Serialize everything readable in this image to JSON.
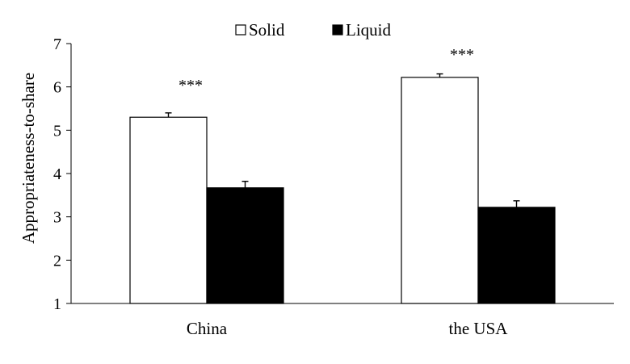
{
  "chart_data": {
    "type": "bar",
    "categories": [
      "China",
      "the USA"
    ],
    "series": [
      {
        "name": "Solid",
        "values": [
          5.3,
          6.22
        ],
        "errors": [
          0.1,
          0.08
        ],
        "color": "#ffffff",
        "stroke": "#000000"
      },
      {
        "name": "Liquid",
        "values": [
          3.67,
          3.22
        ],
        "errors": [
          0.15,
          0.15
        ],
        "color": "#000000",
        "stroke": "#000000"
      }
    ],
    "title": "",
    "xlabel": "",
    "ylabel": "Appropriateness-to-share",
    "ylim": [
      1,
      7
    ],
    "yticks": [
      "1",
      "2",
      "3",
      "4",
      "5",
      "6",
      "7"
    ],
    "annotations": [
      "***",
      "***"
    ],
    "grid": false,
    "legend_position": "top"
  }
}
